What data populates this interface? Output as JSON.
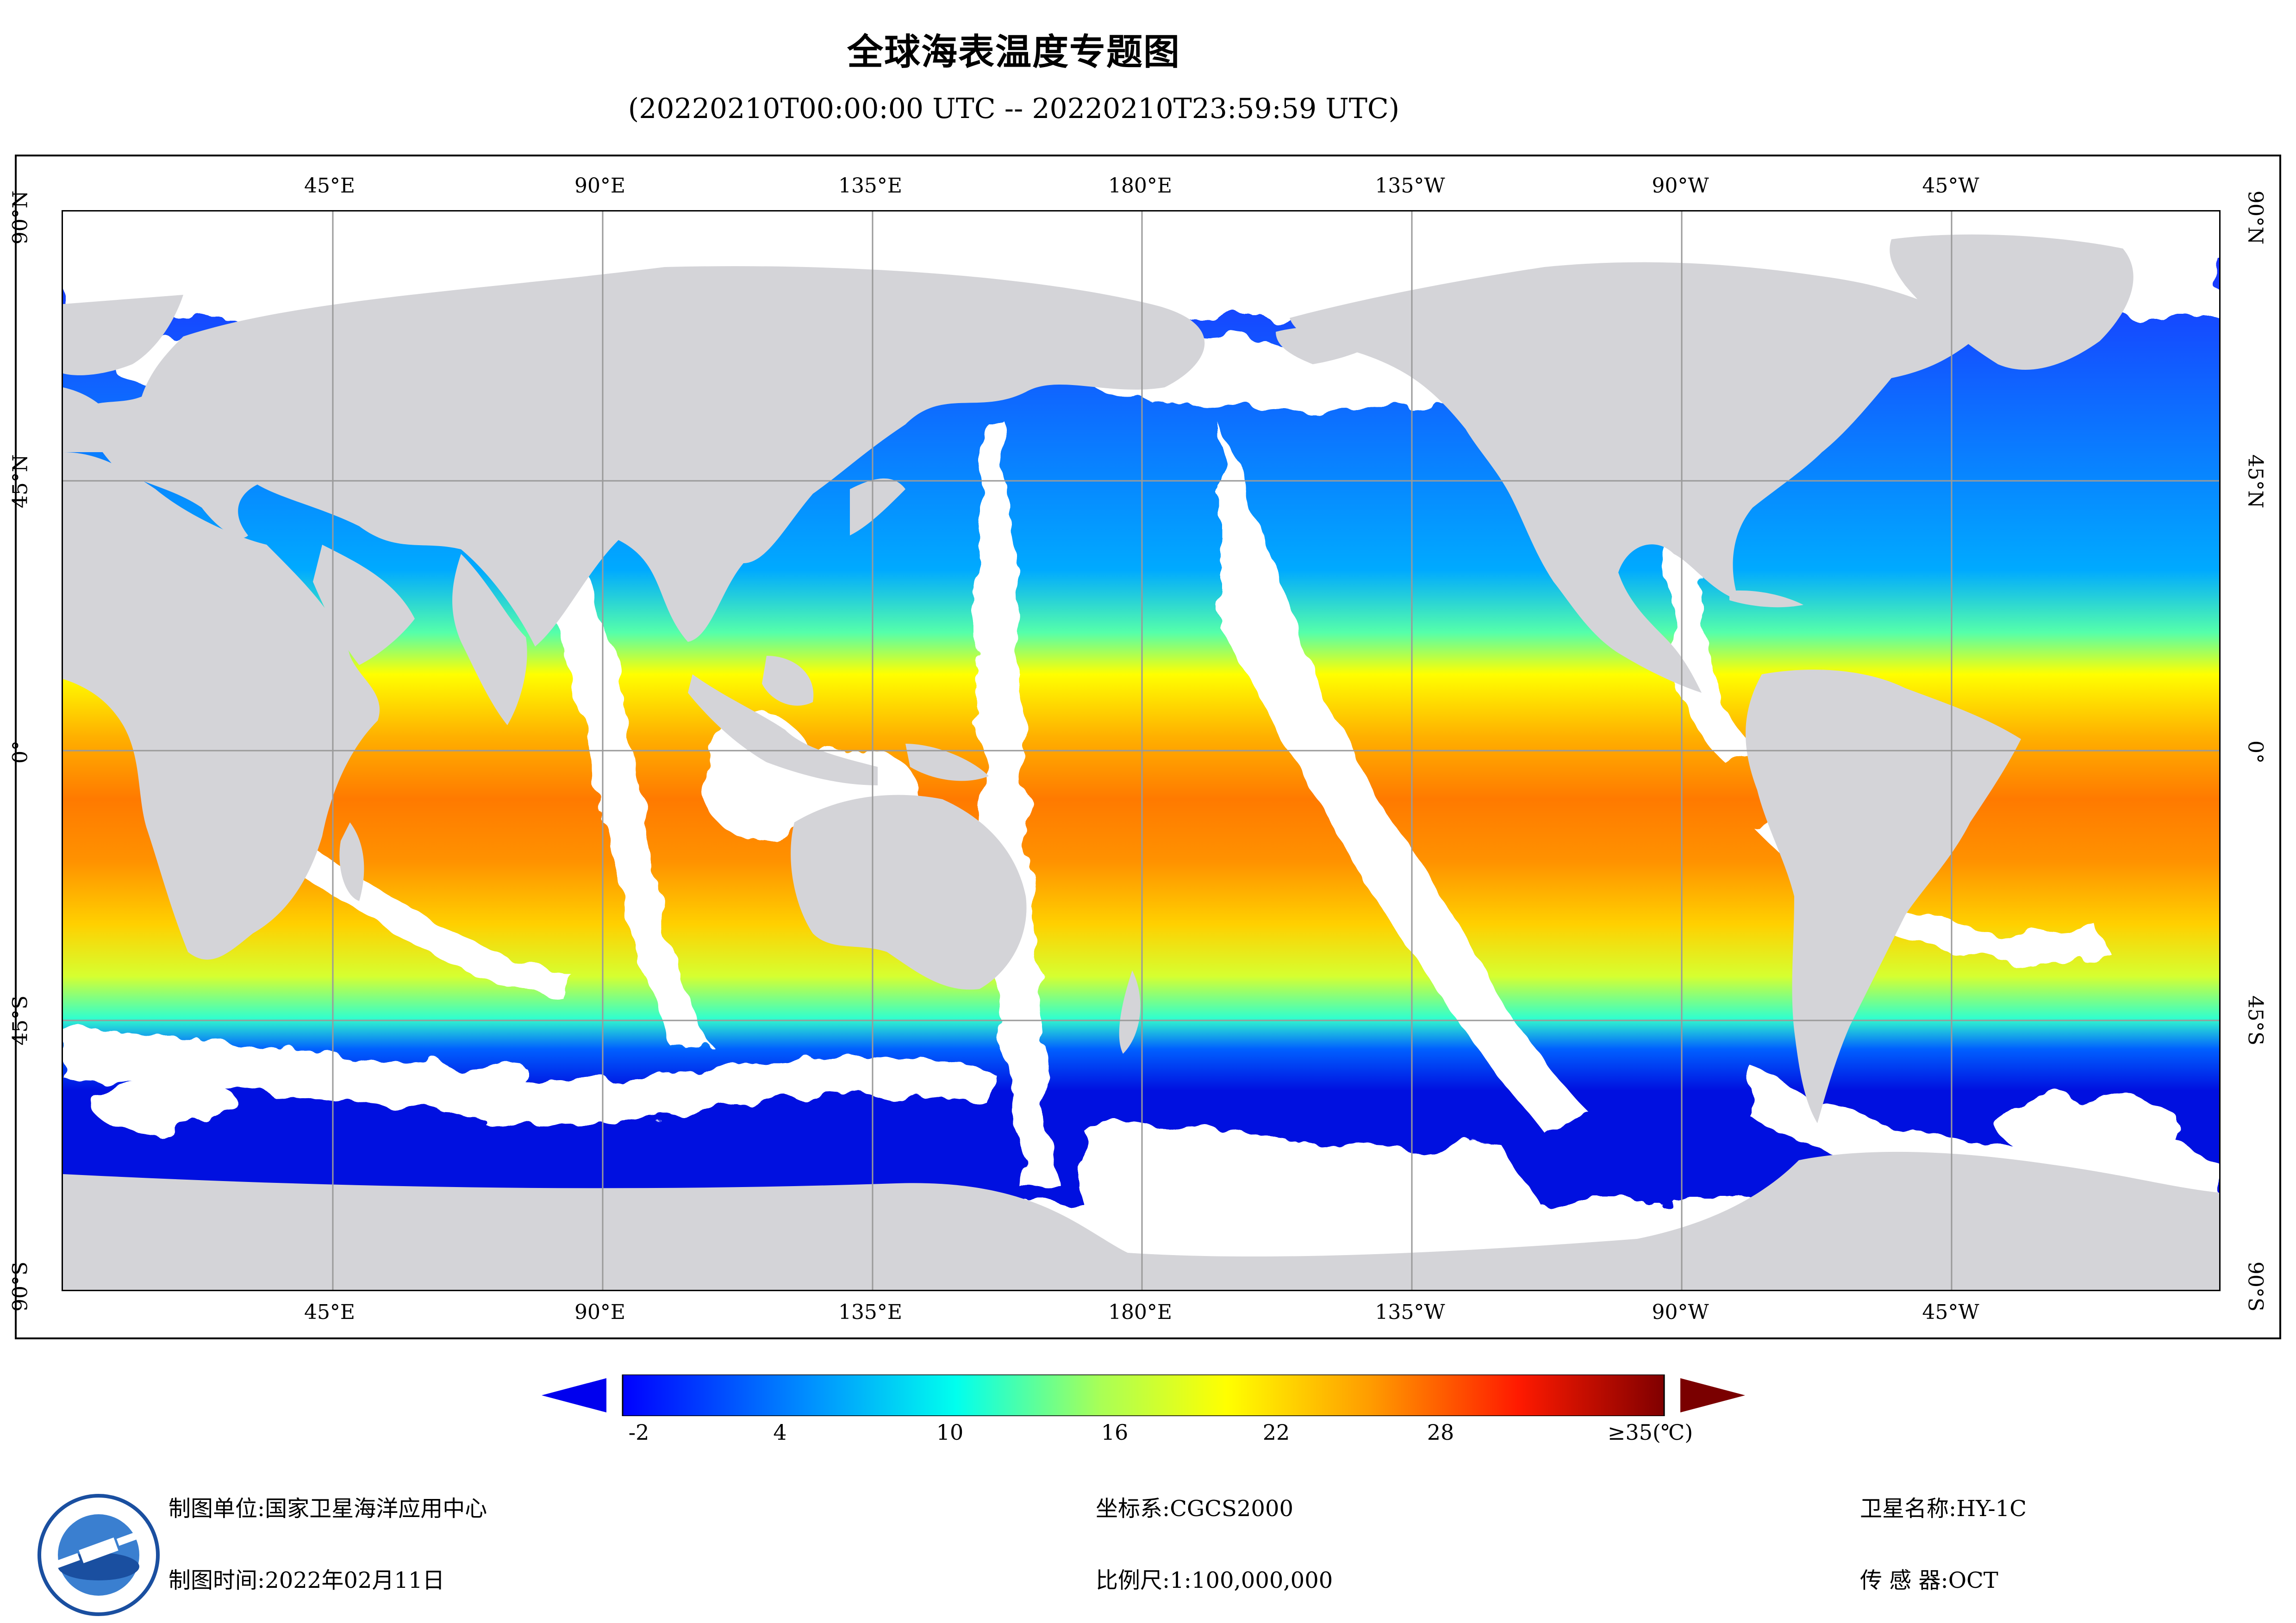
{
  "title": "全球海表温度专题图",
  "subtitle": "(20220210T00:00:00 UTC -- 20220210T23:59:59 UTC)",
  "map": {
    "lon_labels": [
      "45°E",
      "90°E",
      "135°E",
      "180°E",
      "135°W",
      "90°W",
      "45°W"
    ],
    "lat_labels": [
      "90°N",
      "45°N",
      "0°",
      "45°S",
      "90°S"
    ],
    "colors": {
      "land": "#d4d4d8",
      "cloud_gap": "#ffffff",
      "grid": "#9a9a9a"
    }
  },
  "legend": {
    "tick_labels": [
      "-2",
      "4",
      "10",
      "16",
      "22",
      "28",
      "≥35(℃)"
    ],
    "colors": [
      "#0000ff",
      "#00ffff",
      "#ffff00",
      "#ff6a00",
      "#ff0000",
      "#7f0000"
    ]
  },
  "footer": {
    "org_label": "制图单位:",
    "org_value": "国家卫星海洋应用中心",
    "time_label": "制图时间:",
    "time_value": "2022年02月11日",
    "crs_label": "坐标系:",
    "crs_value": "CGCS2000",
    "scale_label": "比例尺:",
    "scale_value": "1:100,000,000",
    "satellite_label": "卫星名称:",
    "satellite_value": "HY-1C",
    "sensor_label": "传 感 器:",
    "sensor_value": "OCT"
  }
}
